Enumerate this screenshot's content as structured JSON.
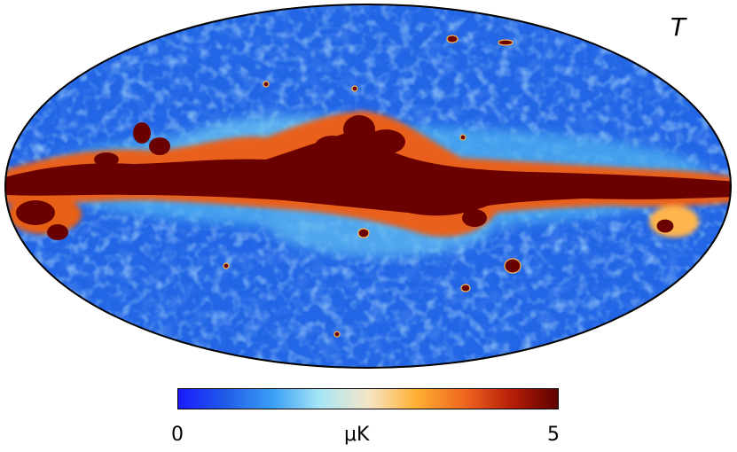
{
  "map": {
    "label": "T",
    "projection": "mollweide"
  },
  "colorbar": {
    "min_label": "0",
    "max_label": "5",
    "unit": "μK",
    "colors": [
      "#1a1aff",
      "#1f5ce8",
      "#3aa0f5",
      "#a8e6f5",
      "#f5e6c8",
      "#ffb033",
      "#f06820",
      "#b82008",
      "#600000"
    ]
  },
  "palette": {
    "background_ellipse": "#2266e6",
    "band_core": "#6b0000",
    "band_edge": "#e8601a",
    "warm_spots": "#ffb54d",
    "light_spots": "#9ad8f5",
    "outline": "#000000"
  }
}
